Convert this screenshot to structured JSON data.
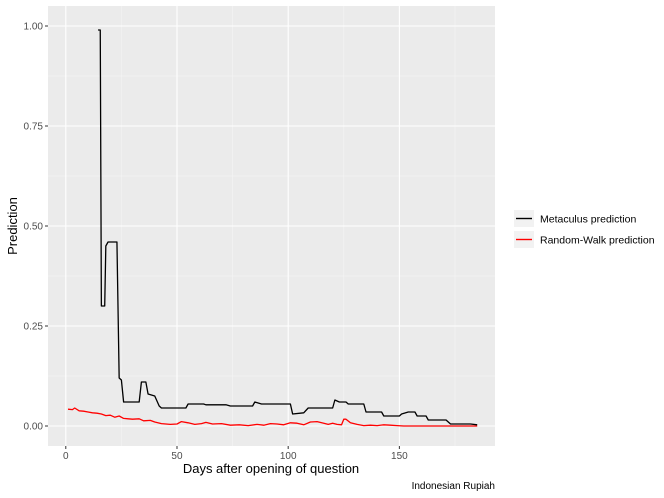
{
  "chart_data": {
    "type": "line",
    "xlabel": "Days after opening of question",
    "ylabel": "Prediction",
    "caption": "Indonesian Rupiah",
    "xlim": [
      -8,
      193
    ],
    "ylim": [
      -0.05,
      1.05
    ],
    "x_ticks": [
      0,
      50,
      100,
      150
    ],
    "y_ticks": [
      0.0,
      0.25,
      0.5,
      0.75,
      1.0
    ],
    "y_tick_labels": [
      "0.00",
      "0.25",
      "0.50",
      "0.75",
      "1.00"
    ],
    "grid": true,
    "legend_position": "right",
    "series": [
      {
        "name": "Metaculus prediction",
        "color": "#000000",
        "points": [
          [
            14.5,
            0.99
          ],
          [
            15,
            0.99
          ],
          [
            15.5,
            0.99
          ],
          [
            16,
            0.3
          ],
          [
            17.5,
            0.3
          ],
          [
            18,
            0.45
          ],
          [
            19,
            0.46
          ],
          [
            23,
            0.46
          ],
          [
            24,
            0.12
          ],
          [
            25,
            0.115
          ],
          [
            26,
            0.06
          ],
          [
            33,
            0.06
          ],
          [
            34,
            0.11
          ],
          [
            36,
            0.11
          ],
          [
            37,
            0.08
          ],
          [
            40,
            0.075
          ],
          [
            42,
            0.05
          ],
          [
            43,
            0.045
          ],
          [
            54,
            0.045
          ],
          [
            55,
            0.055
          ],
          [
            62,
            0.055
          ],
          [
            63,
            0.053
          ],
          [
            72,
            0.053
          ],
          [
            74,
            0.05
          ],
          [
            84,
            0.05
          ],
          [
            85,
            0.06
          ],
          [
            88,
            0.055
          ],
          [
            101,
            0.055
          ],
          [
            102,
            0.03
          ],
          [
            107,
            0.033
          ],
          [
            109,
            0.045
          ],
          [
            120,
            0.045
          ],
          [
            121,
            0.065
          ],
          [
            123,
            0.06
          ],
          [
            126,
            0.06
          ],
          [
            127,
            0.055
          ],
          [
            134,
            0.055
          ],
          [
            135,
            0.035
          ],
          [
            142,
            0.035
          ],
          [
            143,
            0.025
          ],
          [
            150,
            0.025
          ],
          [
            151,
            0.03
          ],
          [
            154,
            0.035
          ],
          [
            157,
            0.035
          ],
          [
            158,
            0.025
          ],
          [
            162,
            0.025
          ],
          [
            163,
            0.015
          ],
          [
            171,
            0.015
          ],
          [
            173,
            0.005
          ],
          [
            182,
            0.005
          ],
          [
            185,
            0.003
          ]
        ]
      },
      {
        "name": "Random-Walk prediction",
        "color": "#ff0000",
        "points": [
          [
            1,
            0.042
          ],
          [
            3,
            0.041
          ],
          [
            4,
            0.045
          ],
          [
            6,
            0.038
          ],
          [
            8,
            0.037
          ],
          [
            10,
            0.035
          ],
          [
            12,
            0.033
          ],
          [
            14,
            0.032
          ],
          [
            16,
            0.03
          ],
          [
            18,
            0.026
          ],
          [
            20,
            0.027
          ],
          [
            22,
            0.022
          ],
          [
            24,
            0.025
          ],
          [
            26,
            0.019
          ],
          [
            28,
            0.018
          ],
          [
            30,
            0.017
          ],
          [
            33,
            0.018
          ],
          [
            35,
            0.013
          ],
          [
            38,
            0.014
          ],
          [
            40,
            0.01
          ],
          [
            43,
            0.006
          ],
          [
            47,
            0.004
          ],
          [
            50,
            0.005
          ],
          [
            52,
            0.011
          ],
          [
            55,
            0.008
          ],
          [
            58,
            0.004
          ],
          [
            61,
            0.006
          ],
          [
            63,
            0.009
          ],
          [
            66,
            0.005
          ],
          [
            70,
            0.006
          ],
          [
            74,
            0.002
          ],
          [
            78,
            0.003
          ],
          [
            82,
            0.001
          ],
          [
            86,
            0.004
          ],
          [
            89,
            0.002
          ],
          [
            92,
            0.006
          ],
          [
            95,
            0.005
          ],
          [
            98,
            0.003
          ],
          [
            101,
            0.008
          ],
          [
            104,
            0.007
          ],
          [
            107,
            0.003
          ],
          [
            110,
            0.01
          ],
          [
            113,
            0.011
          ],
          [
            116,
            0.007
          ],
          [
            118,
            0.004
          ],
          [
            120,
            0.007
          ],
          [
            122,
            0.004
          ],
          [
            124,
            0.003
          ],
          [
            125,
            0.017
          ],
          [
            126,
            0.017
          ],
          [
            128,
            0.008
          ],
          [
            131,
            0.004
          ],
          [
            134,
            0.001
          ],
          [
            137,
            0.002
          ],
          [
            140,
            0.001
          ],
          [
            143,
            0.003
          ],
          [
            146,
            0.002
          ],
          [
            149,
            0.001
          ],
          [
            152,
            0.0
          ],
          [
            160,
            0.0
          ],
          [
            170,
            0.0
          ],
          [
            180,
            0.0
          ],
          [
            185,
            0.0
          ]
        ]
      }
    ]
  }
}
